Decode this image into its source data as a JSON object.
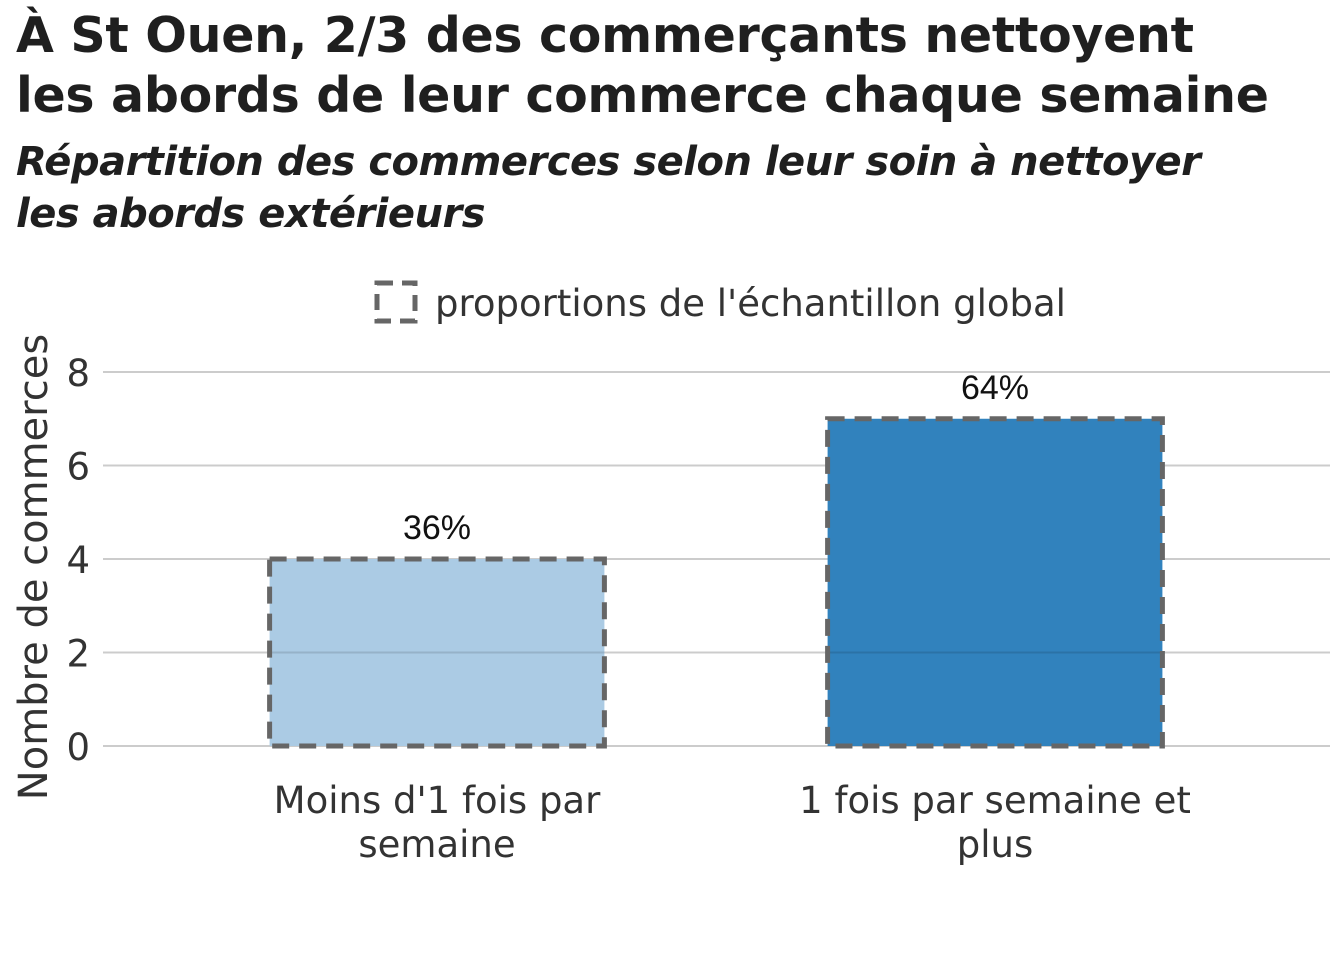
{
  "title_lines": [
    "À St Ouen, 2/3 des commerçants nettoyent",
    "les abords de leur commerce chaque semaine"
  ],
  "subtitle_lines": [
    "Répartition des commerces selon leur soin à nettoyer",
    "les abords extérieurs"
  ],
  "legend": {
    "label": "proportions de l'échantillon global",
    "swatch_color": "#666666"
  },
  "chart_data": {
    "type": "bar",
    "categories": [
      [
        "Moins d'1 fois par",
        "semaine"
      ],
      [
        "1 fois par semaine et",
        "plus"
      ]
    ],
    "values": [
      4,
      7
    ],
    "bar_labels": [
      "36%",
      "64%"
    ],
    "colors": [
      "#abcbe4",
      "#3182bd"
    ],
    "outline_color": "#666666",
    "ylabel": "Nombre de commerces",
    "xlabel": "",
    "ylim": [
      0,
      8
    ],
    "yticks": [
      0,
      2,
      4,
      6,
      8
    ],
    "grid": true,
    "legend_position": "top"
  }
}
